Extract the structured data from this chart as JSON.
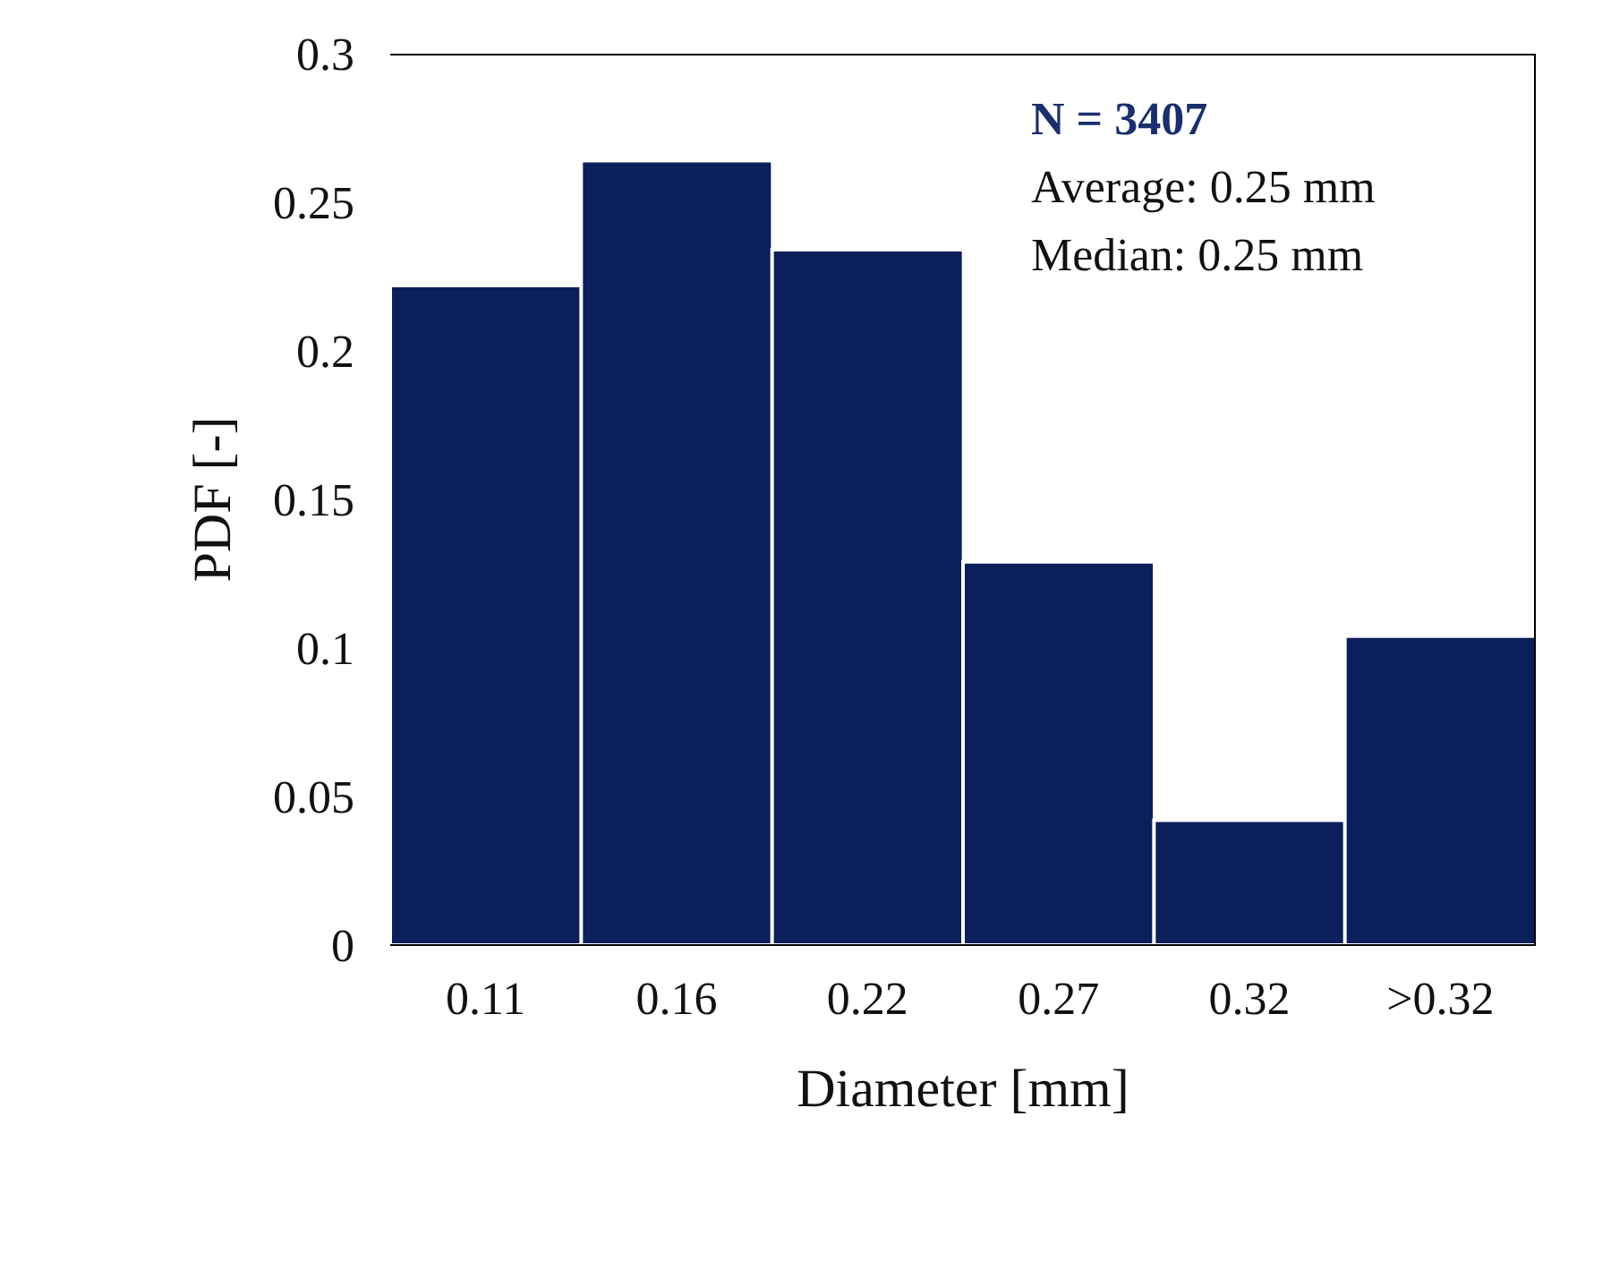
{
  "chart_data": {
    "type": "bar",
    "xlabel": "Diameter [mm]",
    "ylabel": "PDF [-]",
    "categories": [
      "0.11",
      "0.16",
      "0.22",
      "0.27",
      "0.32",
      ">0.32"
    ],
    "values": [
      0.222,
      0.264,
      0.234,
      0.129,
      0.042,
      0.104
    ],
    "color": "#0b1f5c",
    "ylim": [
      0,
      0.3
    ],
    "yticks": [
      0,
      0.05,
      0.1,
      0.15,
      0.2,
      0.25,
      0.3
    ],
    "grid": false,
    "annotations": [
      "N = 3407",
      "Average: 0.25 mm",
      "Median: 0.25 mm"
    ]
  }
}
